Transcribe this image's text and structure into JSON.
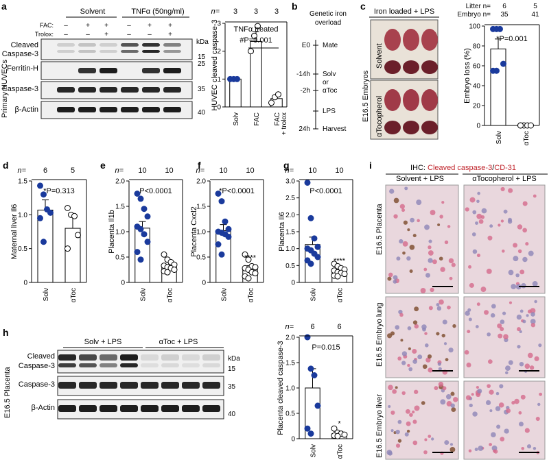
{
  "panel_letters": [
    "a",
    "b",
    "c",
    "d",
    "e",
    "f",
    "g",
    "h",
    "i"
  ],
  "panel_a": {
    "group1": "Solvent",
    "group2": "TNFα (50ng/ml)",
    "row_fac": "FAC:",
    "row_trolox": "Trolox:",
    "fac_signs": [
      "–",
      "+",
      "+",
      "–",
      "+",
      "+"
    ],
    "trolox_signs": [
      "–",
      "–",
      "+",
      "–",
      "–",
      "+"
    ],
    "blot_labels": [
      "Cleaved",
      "Caspase-3",
      "Ferritin-H",
      "Caspase-3",
      "β-Actin"
    ],
    "side_label": "Primary HUVECs",
    "kda": "kDa",
    "mw": [
      "15",
      "25",
      "35",
      "40"
    ],
    "chart_title": "TNFα treated",
    "chart_ylabel": "HUVEC cleaved caspase-3",
    "n_label": "n=",
    "n_values": [
      "3",
      "3",
      "3"
    ],
    "stat": "#P=0.001",
    "xticks": [
      "Solv",
      "FAC",
      "FAC\n+ trolox"
    ],
    "yticks": [
      "0",
      "1",
      "2",
      "3"
    ]
  },
  "panel_b": {
    "title1": "Genetic iron",
    "title2": "overload",
    "steps": [
      {
        "time": "E0",
        "label": "Mate"
      },
      {
        "time": "-14h",
        "label": "Solv"
      },
      {
        "time": "",
        "label": "or"
      },
      {
        "time": "-2h",
        "label": "αToc"
      },
      {
        "time": "",
        "label": "LPS"
      },
      {
        "time": "24h",
        "label": "Harvest"
      }
    ]
  },
  "panel_c": {
    "header": "Iron loaded + LPS",
    "rows": [
      "Solvent",
      "αTocopherol"
    ],
    "side_label": "E16.5 Embryos",
    "litter_label": "Litter n=",
    "embryo_label": "Embryo n=",
    "litter_values": [
      "6",
      "5"
    ],
    "embryo_values": [
      "35",
      "41"
    ],
    "stat": "*P=0.001",
    "ylabel": "Embryo loss (%)",
    "yticks": [
      "0",
      "20",
      "40",
      "60",
      "80",
      "100"
    ],
    "xticks": [
      "Solv",
      "αToc"
    ]
  },
  "panel_d": {
    "n": [
      "6",
      "5"
    ],
    "stat": "*P=0.313",
    "ylabel": "Maternal liver Il6",
    "yticks": [
      "0",
      "0.5",
      "1.0",
      "1.5"
    ],
    "xticks": [
      "Solv",
      "αToc"
    ]
  },
  "panel_e": {
    "n": [
      "10",
      "10"
    ],
    "stat": "P<0.0001",
    "ylabel": "Placenta Il1b",
    "yticks": [
      "0",
      "0.5",
      "1.0",
      "1.5",
      "2.0"
    ],
    "xticks": [
      "Solv",
      "αToc"
    ]
  },
  "panel_f": {
    "n": [
      "10",
      "10"
    ],
    "stat": "*P<0.0001",
    "ylabel": "Placenta Cxcl2",
    "yticks": [
      "0",
      "0.5",
      "1.0",
      "1.5",
      "2.0"
    ],
    "xticks": [
      "Solv",
      "αToc"
    ],
    "sig": "****"
  },
  "panel_g": {
    "n": [
      "10",
      "10"
    ],
    "stat": "P<0.0001",
    "ylabel": "Placenta Il6",
    "yticks": [
      "0",
      "0.5",
      "1.0",
      "1.5",
      "2.0",
      "2.5",
      "3.0"
    ],
    "xticks": [
      "Solv",
      "αToc"
    ],
    "sig": "****"
  },
  "panel_h": {
    "group1": "Solv + LPS",
    "group2": "αToc + LPS",
    "blot_labels": [
      "Cleaved",
      "Caspase-3",
      "Caspase-3",
      "β-Actin"
    ],
    "side_label": "E16.5 Placenta",
    "kda": "kDa",
    "mw": [
      "15",
      "35",
      "40"
    ],
    "n": [
      "6",
      "6"
    ],
    "stat": "P=0.015",
    "ylabel": "Placenta cleaved caspase-3",
    "yticks": [
      "0",
      "0.5",
      "1.0",
      "1.5",
      "2.0"
    ],
    "xticks": [
      "Solv",
      "αToc"
    ],
    "sig": "*"
  },
  "panel_i": {
    "title_prefix": "IHC: ",
    "title_red": "Cleaved caspase-3",
    "title_slash": "/",
    "title_red2": "CD-31",
    "col1": "Solvent + LPS",
    "col2": "αTocopherol + LPS",
    "rows": [
      "E16.5 Placenta",
      "E16.5 Embryo lung",
      "E16.5 Embryo liver"
    ]
  },
  "colors": {
    "dot_blue": "#1a3a9c",
    "red": "#c0262d",
    "tissue": "#e8c9d4"
  },
  "chart_data": [
    {
      "type": "bar",
      "panel": "a",
      "categories": [
        "Solv",
        "FAC",
        "FAC + trolox"
      ],
      "values": [
        1.0,
        2.35,
        0.3
      ],
      "points": [
        [
          1,
          1,
          1
        ],
        [
          2.0,
          2.55,
          2.9
        ],
        [
          0.15,
          0.35,
          0.45
        ]
      ],
      "ylim": [
        0,
        3
      ],
      "ylabel": "HUVEC cleaved caspase-3",
      "title": "TNFα treated"
    },
    {
      "type": "bar",
      "panel": "c",
      "categories": [
        "Solv",
        "αToc"
      ],
      "values": [
        77,
        0
      ],
      "points": [
        [
          97,
          97,
          97,
          62,
          55,
          55
        ],
        [
          0,
          0,
          0,
          0,
          0
        ]
      ],
      "ylim": [
        0,
        100
      ],
      "ylabel": "Embryo loss (%)"
    },
    {
      "type": "bar",
      "panel": "d",
      "categories": [
        "Solv",
        "αToc"
      ],
      "values": [
        1.07,
        0.8
      ],
      "points": [
        [
          1.43,
          1.3,
          1.08,
          1.03,
          0.95,
          0.6
        ],
        [
          1.1,
          1.0,
          0.98,
          0.7,
          0.5
        ]
      ],
      "ylim": [
        0,
        1.5
      ],
      "ylabel": "Maternal liver Il6"
    },
    {
      "type": "bar",
      "panel": "e",
      "categories": [
        "Solv",
        "αToc"
      ],
      "values": [
        1.07,
        0.35
      ],
      "points": [
        [
          1.75,
          1.65,
          1.45,
          1.3,
          1.1,
          1.05,
          0.95,
          0.8,
          0.6,
          0.45
        ],
        [
          0.55,
          0.45,
          0.4,
          0.35,
          0.33,
          0.3,
          0.28,
          0.25,
          0.22,
          0.2
        ]
      ],
      "ylim": [
        0,
        2.0
      ],
      "ylabel": "Placenta Il1b"
    },
    {
      "type": "bar",
      "panel": "f",
      "categories": [
        "Solv",
        "αToc"
      ],
      "values": [
        1.02,
        0.28
      ],
      "points": [
        [
          1.75,
          1.6,
          1.2,
          1.05,
          1.0,
          0.98,
          0.95,
          0.9,
          0.75,
          0.55
        ],
        [
          0.55,
          0.45,
          0.32,
          0.3,
          0.28,
          0.25,
          0.2,
          0.18,
          0.12,
          0.08
        ]
      ],
      "ylim": [
        0,
        2.0
      ],
      "ylabel": "Placenta Cxcl2"
    },
    {
      "type": "bar",
      "panel": "g",
      "categories": [
        "Solv",
        "αToc"
      ],
      "values": [
        1.12,
        0.35
      ],
      "points": [
        [
          2.95,
          1.9,
          1.3,
          1.05,
          1.0,
          0.95,
          0.85,
          0.75,
          0.65,
          0.55
        ],
        [
          0.55,
          0.48,
          0.42,
          0.38,
          0.35,
          0.3,
          0.28,
          0.25,
          0.2,
          0.18
        ]
      ],
      "ylim": [
        0,
        3.0
      ],
      "ylabel": "Placenta Il6"
    },
    {
      "type": "bar",
      "panel": "h",
      "categories": [
        "Solv",
        "αToc"
      ],
      "values": [
        1.0,
        0.1
      ],
      "points": [
        [
          2.0,
          1.38,
          1.25,
          0.65,
          0.2,
          0.1
        ],
        [
          0.2,
          0.12,
          0.1,
          0.08,
          0.06,
          0.05
        ]
      ],
      "ylim": [
        0,
        2.0
      ],
      "ylabel": "Placenta cleaved caspase-3"
    }
  ]
}
